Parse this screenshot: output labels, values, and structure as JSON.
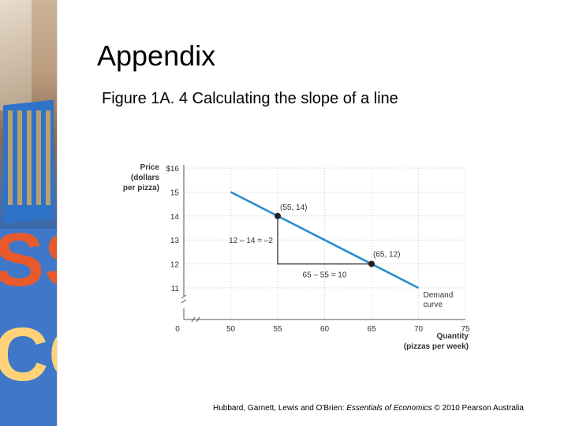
{
  "slide": {
    "title": "Appendix",
    "subtitle": "Figure 1A. 4 Calculating the slope of a line"
  },
  "footer": {
    "authors": "Hubbard, Garnett, Lewis and O'Brien: ",
    "book": "Essentials of Economics",
    "rest": " © 2010 Pearson Australia"
  },
  "decor": {
    "letters_top": "SS",
    "letters_bottom": "CO"
  },
  "chart_data": {
    "type": "line",
    "ylabel_lines": [
      "Price",
      "(dollars",
      "per pizza)"
    ],
    "xlabel_lines": [
      "Quantity",
      "(pizzas per week)"
    ],
    "x_ticks": [
      "0",
      "50",
      "55",
      "60",
      "65",
      "70",
      "75"
    ],
    "y_ticks": [
      "$16",
      "15",
      "14",
      "13",
      "12",
      "11"
    ],
    "ylim": [
      11,
      16
    ],
    "xlim": [
      50,
      75
    ],
    "grid": true,
    "series": [
      {
        "name": "Demand curve",
        "x": [
          50,
          70
        ],
        "y": [
          15,
          11
        ],
        "color": "#2a8fcf"
      }
    ],
    "points": [
      {
        "x": 55,
        "y": 14,
        "label": "(55, 14)"
      },
      {
        "x": 65,
        "y": 12,
        "label": "(65, 12)"
      }
    ],
    "annotations": {
      "rise": "12 – 14 = –2",
      "run": "65 – 55 = 10",
      "curve_label_1": "Demand",
      "curve_label_2": "curve"
    }
  }
}
